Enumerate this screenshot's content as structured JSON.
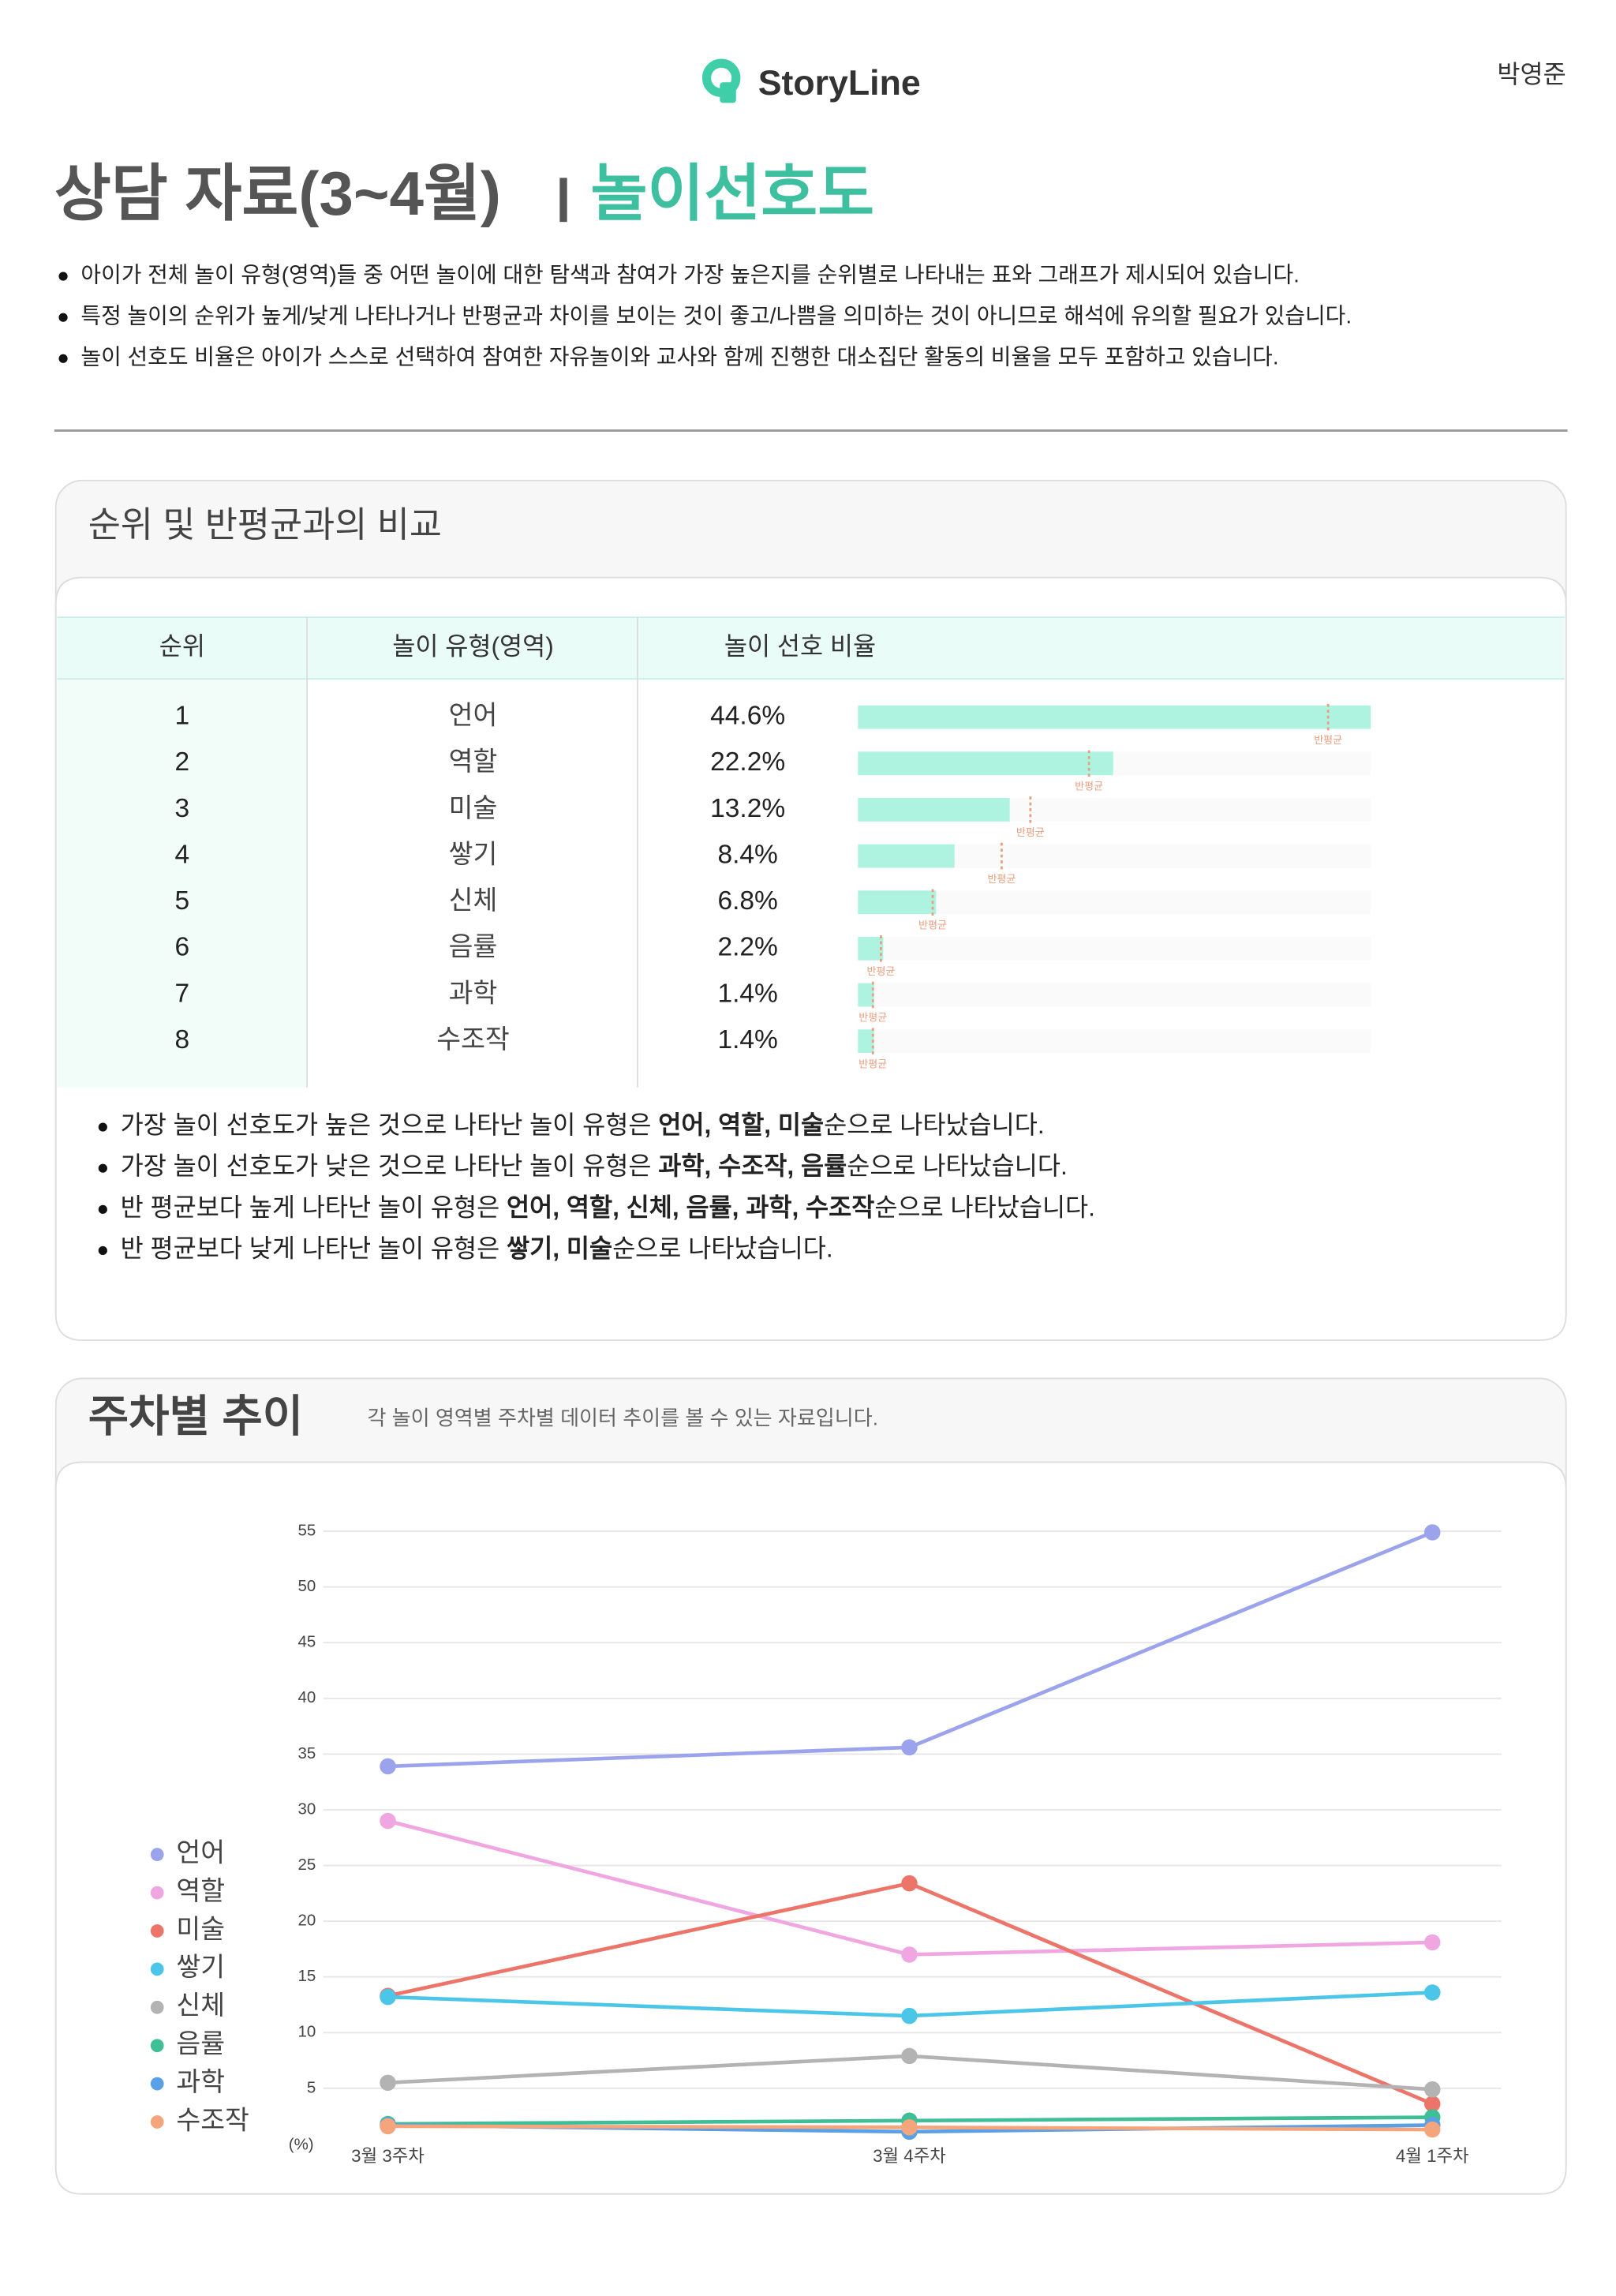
{
  "header": {
    "logo": "StoryLine",
    "user": "박영준"
  },
  "title": {
    "main": "상담 자료(3~4월)",
    "highlight": "놀이선호도"
  },
  "notes": [
    "아이가 전체 놀이 유형(영역)들 중 어떤 놀이에 대한 탐색과 참여가 가장 높은지를 순위별로 나타내는 표와 그래프가 제시되어 있습니다.",
    "특정 놀이의 순위가 높게/낮게 나타나거나 반평균과 차이를 보이는 것이 좋고/나쁨을 의미하는 것이 아니므로 해석에 유의할 필요가 있습니다.",
    "놀이 선호도 비율은 아이가 스스로 선택하여 참여한 자유놀이와 교사와 함께 진행한 대소집단 활동의 비율을 모두 포함하고 있습니다."
  ],
  "ranking": {
    "title": "순위 및 반평균과의 비교",
    "columns": [
      "순위",
      "놀이 유형(영역)",
      "놀이 선호 비율"
    ],
    "avg_label": "반평균",
    "rows": [
      {
        "rank": 1,
        "type": "언어",
        "value": 44.6,
        "value_label": "44.6%",
        "class_avg": 40.9
      },
      {
        "rank": 2,
        "type": "역할",
        "value": 22.2,
        "value_label": "22.2%",
        "class_avg": 20.1
      },
      {
        "rank": 3,
        "type": "미술",
        "value": 13.2,
        "value_label": "13.2%",
        "class_avg": 15.0
      },
      {
        "rank": 4,
        "type": "쌓기",
        "value": 8.4,
        "value_label": "8.4%",
        "class_avg": 12.5
      },
      {
        "rank": 5,
        "type": "신체",
        "value": 6.8,
        "value_label": "6.8%",
        "class_avg": 6.5
      },
      {
        "rank": 6,
        "type": "음률",
        "value": 2.2,
        "value_label": "2.2%",
        "class_avg": 2.0
      },
      {
        "rank": 7,
        "type": "과학",
        "value": 1.4,
        "value_label": "1.4%",
        "class_avg": 1.3
      },
      {
        "rank": 8,
        "type": "수조작",
        "value": 1.4,
        "value_label": "1.4%",
        "class_avg": 1.3
      }
    ],
    "summary": [
      [
        {
          "text": "가장 놀이 선호도가 높은 것으로 나타난 놀이 유형은 "
        },
        {
          "text": "언어, 역할, 미술",
          "bold": true
        },
        {
          "text": "순으로 나타났습니다."
        }
      ],
      [
        {
          "text": "가장 놀이 선호도가 낮은 것으로 나타난 놀이 유형은 "
        },
        {
          "text": "과학, 수조작, 음률",
          "bold": true
        },
        {
          "text": "순으로 나타났습니다."
        }
      ],
      [
        {
          "text": "반 평균보다 높게 나타난 놀이 유형은 "
        },
        {
          "text": "언어, 역할, 신체, 음률, 과학, 수조작",
          "bold": true
        },
        {
          "text": "순으로 나타났습니다."
        }
      ],
      [
        {
          "text": "반 평균보다 낮게 나타난 놀이 유형은 "
        },
        {
          "text": "쌓기, 미술",
          "bold": true
        },
        {
          "text": "순으로 나타났습니다."
        }
      ]
    ]
  },
  "trend": {
    "title": "주차별 추이",
    "subtitle": "각 놀이 영역별 주차별 데이터 추이를 볼 수 있는 자료입니다.",
    "chart_data": {
      "type": "line",
      "categories": [
        "3월 3주차",
        "3월 4주차",
        "4월 1주차"
      ],
      "y_unit": "(%)",
      "ylim": [
        0,
        55
      ],
      "yticks": [
        5,
        10,
        15,
        20,
        25,
        30,
        35,
        40,
        45,
        50,
        55
      ],
      "grid": true,
      "legend": "left",
      "series": [
        {
          "name": "언어",
          "color": "#9ba3ec",
          "values": [
            33.9,
            35.6,
            54.9
          ]
        },
        {
          "name": "역할",
          "color": "#f0a6e0",
          "values": [
            29.0,
            17.0,
            18.1
          ]
        },
        {
          "name": "미술",
          "color": "#ec7468",
          "values": [
            13.3,
            23.4,
            3.6
          ]
        },
        {
          "name": "쌓기",
          "color": "#4bc6e8",
          "values": [
            13.2,
            11.5,
            13.6
          ]
        },
        {
          "name": "신체",
          "color": "#b3b3b3",
          "values": [
            5.5,
            7.9,
            4.9
          ]
        },
        {
          "name": "음률",
          "color": "#3fbf96",
          "values": [
            1.8,
            2.1,
            2.4
          ]
        },
        {
          "name": "과학",
          "color": "#5aa0e6",
          "values": [
            1.7,
            1.1,
            1.7
          ]
        },
        {
          "name": "수조작",
          "color": "#f5a57c",
          "values": [
            1.6,
            1.5,
            1.3
          ]
        }
      ]
    }
  }
}
